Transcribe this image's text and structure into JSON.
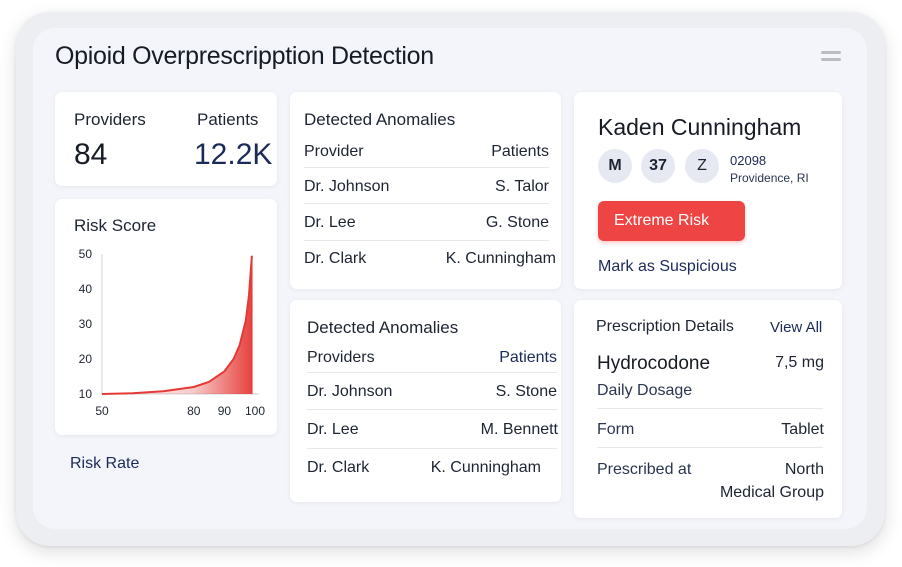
{
  "app": {
    "title": "Opioid Overprescripption Detection"
  },
  "stats": {
    "providers_label": "Providers",
    "providers_value": "84",
    "patients_label": "Patients",
    "patients_value": "12.2K"
  },
  "risk_chart": {
    "title": "Risk Score",
    "footer_link": "Risk Rate"
  },
  "chart_data": {
    "type": "area",
    "title": "Risk Score",
    "x": [
      50,
      60,
      70,
      80,
      85,
      90,
      93,
      95,
      97,
      98,
      99
    ],
    "values": [
      10,
      10.2,
      10.8,
      12,
      13.5,
      16.5,
      20,
      24,
      31,
      38,
      49.5
    ],
    "x_ticks": [
      "50",
      "80",
      "90",
      "100"
    ],
    "y_ticks": [
      "50",
      "40",
      "30",
      "20",
      "10"
    ],
    "xlim": [
      50,
      100
    ],
    "ylim": [
      10,
      50
    ],
    "series_color": "#e53935",
    "grid": false
  },
  "anomalies_top": {
    "title": "Detected Anomalies",
    "col_provider": "Provider",
    "col_patients": "Patients",
    "rows": [
      {
        "provider": "Dr. Johnson",
        "patient": "S. Talor"
      },
      {
        "provider": "Dr. Lee",
        "patient": "G. Stone"
      },
      {
        "provider": "Dr. Clark",
        "patient": "K. Cunningham"
      }
    ]
  },
  "anomalies_bottom": {
    "title": "Detected Anomalies",
    "col_provider": "Providers",
    "col_patients": "Patients",
    "rows": [
      {
        "provider": "Dr. Johnson",
        "patient": "S. Stone"
      },
      {
        "provider": "Dr. Lee",
        "patient": "M. Bennett"
      },
      {
        "provider": "Dr. Clark",
        "patient": "K. Cunningham"
      }
    ]
  },
  "patient": {
    "name": "Kaden Cunningham",
    "gender": "M",
    "age": "37",
    "zodiac": "Z",
    "zip": "02098",
    "city": "Providence, RI",
    "risk_label": "Extreme Risk",
    "mark_link": "Mark as Suspicious"
  },
  "prescription": {
    "title": "Prescription Details",
    "view_all": "View All",
    "drug": "Hydrocodone",
    "dose": "7,5 mg",
    "dosage_label": "Daily Dosage",
    "form_label": "Form",
    "form_value": "Tablet",
    "prescribed_label": "Prescribed at",
    "prescribed_line1": "North",
    "prescribed_line2": "Medical Group"
  },
  "colors": {
    "accent_navy": "#1c2a5a",
    "risk_red": "#ef4444"
  }
}
